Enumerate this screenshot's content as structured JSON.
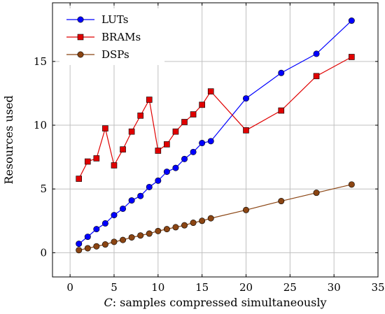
{
  "chart_data": {
    "type": "line",
    "title": "",
    "xlabel": "C: samples compressed simultaneously",
    "xlabel_italic_prefix": "C",
    "xlabel_rest": ": samples compressed simultaneously",
    "ylabel": "Resources used",
    "xlim": [
      -2,
      35
    ],
    "ylim": [
      -1.9,
      19.6
    ],
    "xticks": [
      0,
      5,
      10,
      15,
      20,
      25,
      30,
      35
    ],
    "yticks": [
      0,
      5,
      10,
      15
    ],
    "grid": true,
    "legend_position": "top-left",
    "series": [
      {
        "name": "LUTs",
        "color": "#0000ff",
        "marker": "circle",
        "x": [
          1,
          2,
          3,
          4,
          5,
          6,
          7,
          8,
          9,
          10,
          11,
          12,
          13,
          14,
          15,
          16,
          20,
          24,
          28,
          32
        ],
        "y": [
          0.7,
          1.25,
          1.85,
          2.3,
          2.95,
          3.45,
          4.1,
          4.45,
          5.15,
          5.65,
          6.35,
          6.65,
          7.35,
          7.9,
          8.6,
          8.75,
          12.1,
          14.1,
          15.6,
          18.2
        ]
      },
      {
        "name": "BRAMs",
        "color": "#e00000",
        "marker": "square",
        "x": [
          1,
          2,
          3,
          4,
          5,
          6,
          7,
          8,
          9,
          10,
          11,
          12,
          13,
          14,
          15,
          16,
          20,
          24,
          28,
          32
        ],
        "y": [
          5.8,
          7.15,
          7.4,
          9.75,
          6.85,
          8.1,
          9.5,
          10.75,
          12.0,
          8.0,
          8.5,
          9.5,
          10.25,
          10.85,
          11.6,
          12.65,
          9.6,
          11.15,
          13.85,
          15.35
        ]
      },
      {
        "name": "DSPs",
        "color": "#8b4513",
        "marker": "circle",
        "x": [
          1,
          2,
          3,
          4,
          5,
          6,
          7,
          8,
          9,
          10,
          11,
          12,
          13,
          14,
          15,
          16,
          20,
          24,
          28,
          32
        ],
        "y": [
          0.2,
          0.35,
          0.5,
          0.65,
          0.85,
          1.0,
          1.2,
          1.35,
          1.5,
          1.7,
          1.85,
          2.0,
          2.15,
          2.35,
          2.5,
          2.7,
          3.35,
          4.05,
          4.7,
          5.35
        ]
      }
    ]
  }
}
